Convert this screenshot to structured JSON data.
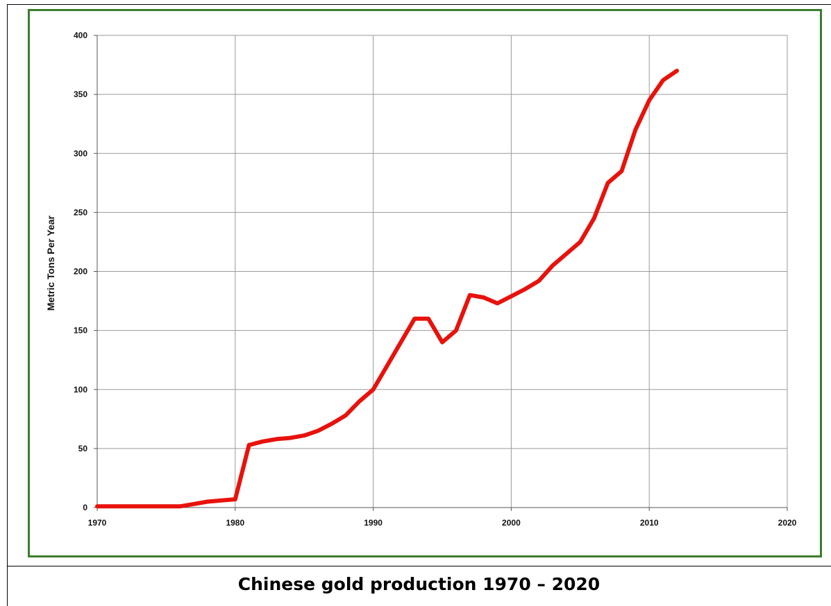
{
  "caption": "Chinese gold production 1970 – 2020",
  "chart_data": {
    "type": "line",
    "title": "",
    "xlabel": "",
    "ylabel": "Metric Tons Per Year",
    "xlim": [
      1970,
      2020
    ],
    "ylim": [
      0,
      400
    ],
    "x_ticks": [
      1970,
      1980,
      1990,
      2000,
      2010,
      2020
    ],
    "y_ticks": [
      0,
      50,
      100,
      150,
      200,
      250,
      300,
      350,
      400
    ],
    "grid": true,
    "line_color": "#e8120c",
    "frame_color": "#3a7d2c",
    "series": [
      {
        "x": [
          1970,
          1971,
          1972,
          1973,
          1974,
          1975,
          1976,
          1977,
          1978,
          1979,
          1980,
          1981,
          1982,
          1983,
          1984,
          1985,
          1986,
          1987,
          1988,
          1989,
          1990,
          1991,
          1992,
          1993,
          1994,
          1995,
          1996,
          1997,
          1998,
          1999,
          2000,
          2001,
          2002,
          2003,
          2004,
          2005,
          2006,
          2007,
          2008,
          2009,
          2010,
          2011,
          2012
        ],
        "values": [
          1,
          1,
          1,
          1,
          1,
          1,
          1,
          3,
          5,
          6,
          7,
          53,
          56,
          58,
          59,
          61,
          65,
          71,
          78,
          90,
          100,
          120,
          140,
          160,
          160,
          140,
          150,
          180,
          178,
          173,
          179,
          185,
          192,
          205,
          215,
          225,
          245,
          275,
          285,
          320,
          345,
          362,
          370
        ]
      }
    ]
  }
}
